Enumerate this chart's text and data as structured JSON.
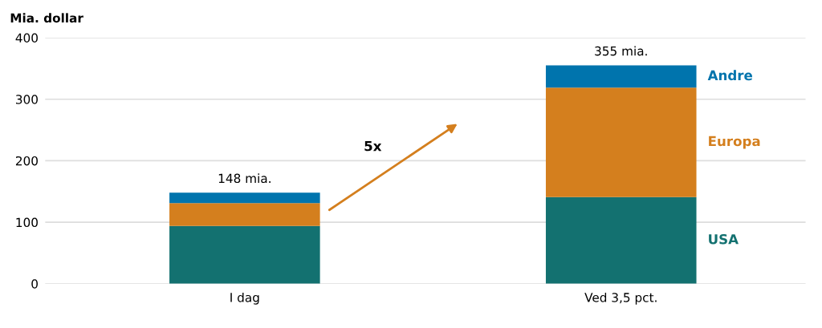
{
  "chart_data": {
    "type": "bar",
    "stacked": true,
    "ylabel": "Mia. dollar",
    "categories": [
      "I dag",
      "Ved 3,5 pct."
    ],
    "series": [
      {
        "name": "USA",
        "color": "#137170",
        "values": [
          94,
          141
        ]
      },
      {
        "name": "Europa",
        "color": "#d47f1e",
        "values": [
          37,
          178
        ]
      },
      {
        "name": "Andre",
        "color": "#0074ad",
        "values": [
          17,
          36
        ]
      }
    ],
    "totals": [
      "148 mia.",
      "355 mia."
    ],
    "annotations": [
      "5x"
    ],
    "ylim": [
      0,
      400
    ],
    "yticks": [
      0,
      100,
      200,
      300,
      400
    ],
    "grid": "y",
    "legend": false
  }
}
